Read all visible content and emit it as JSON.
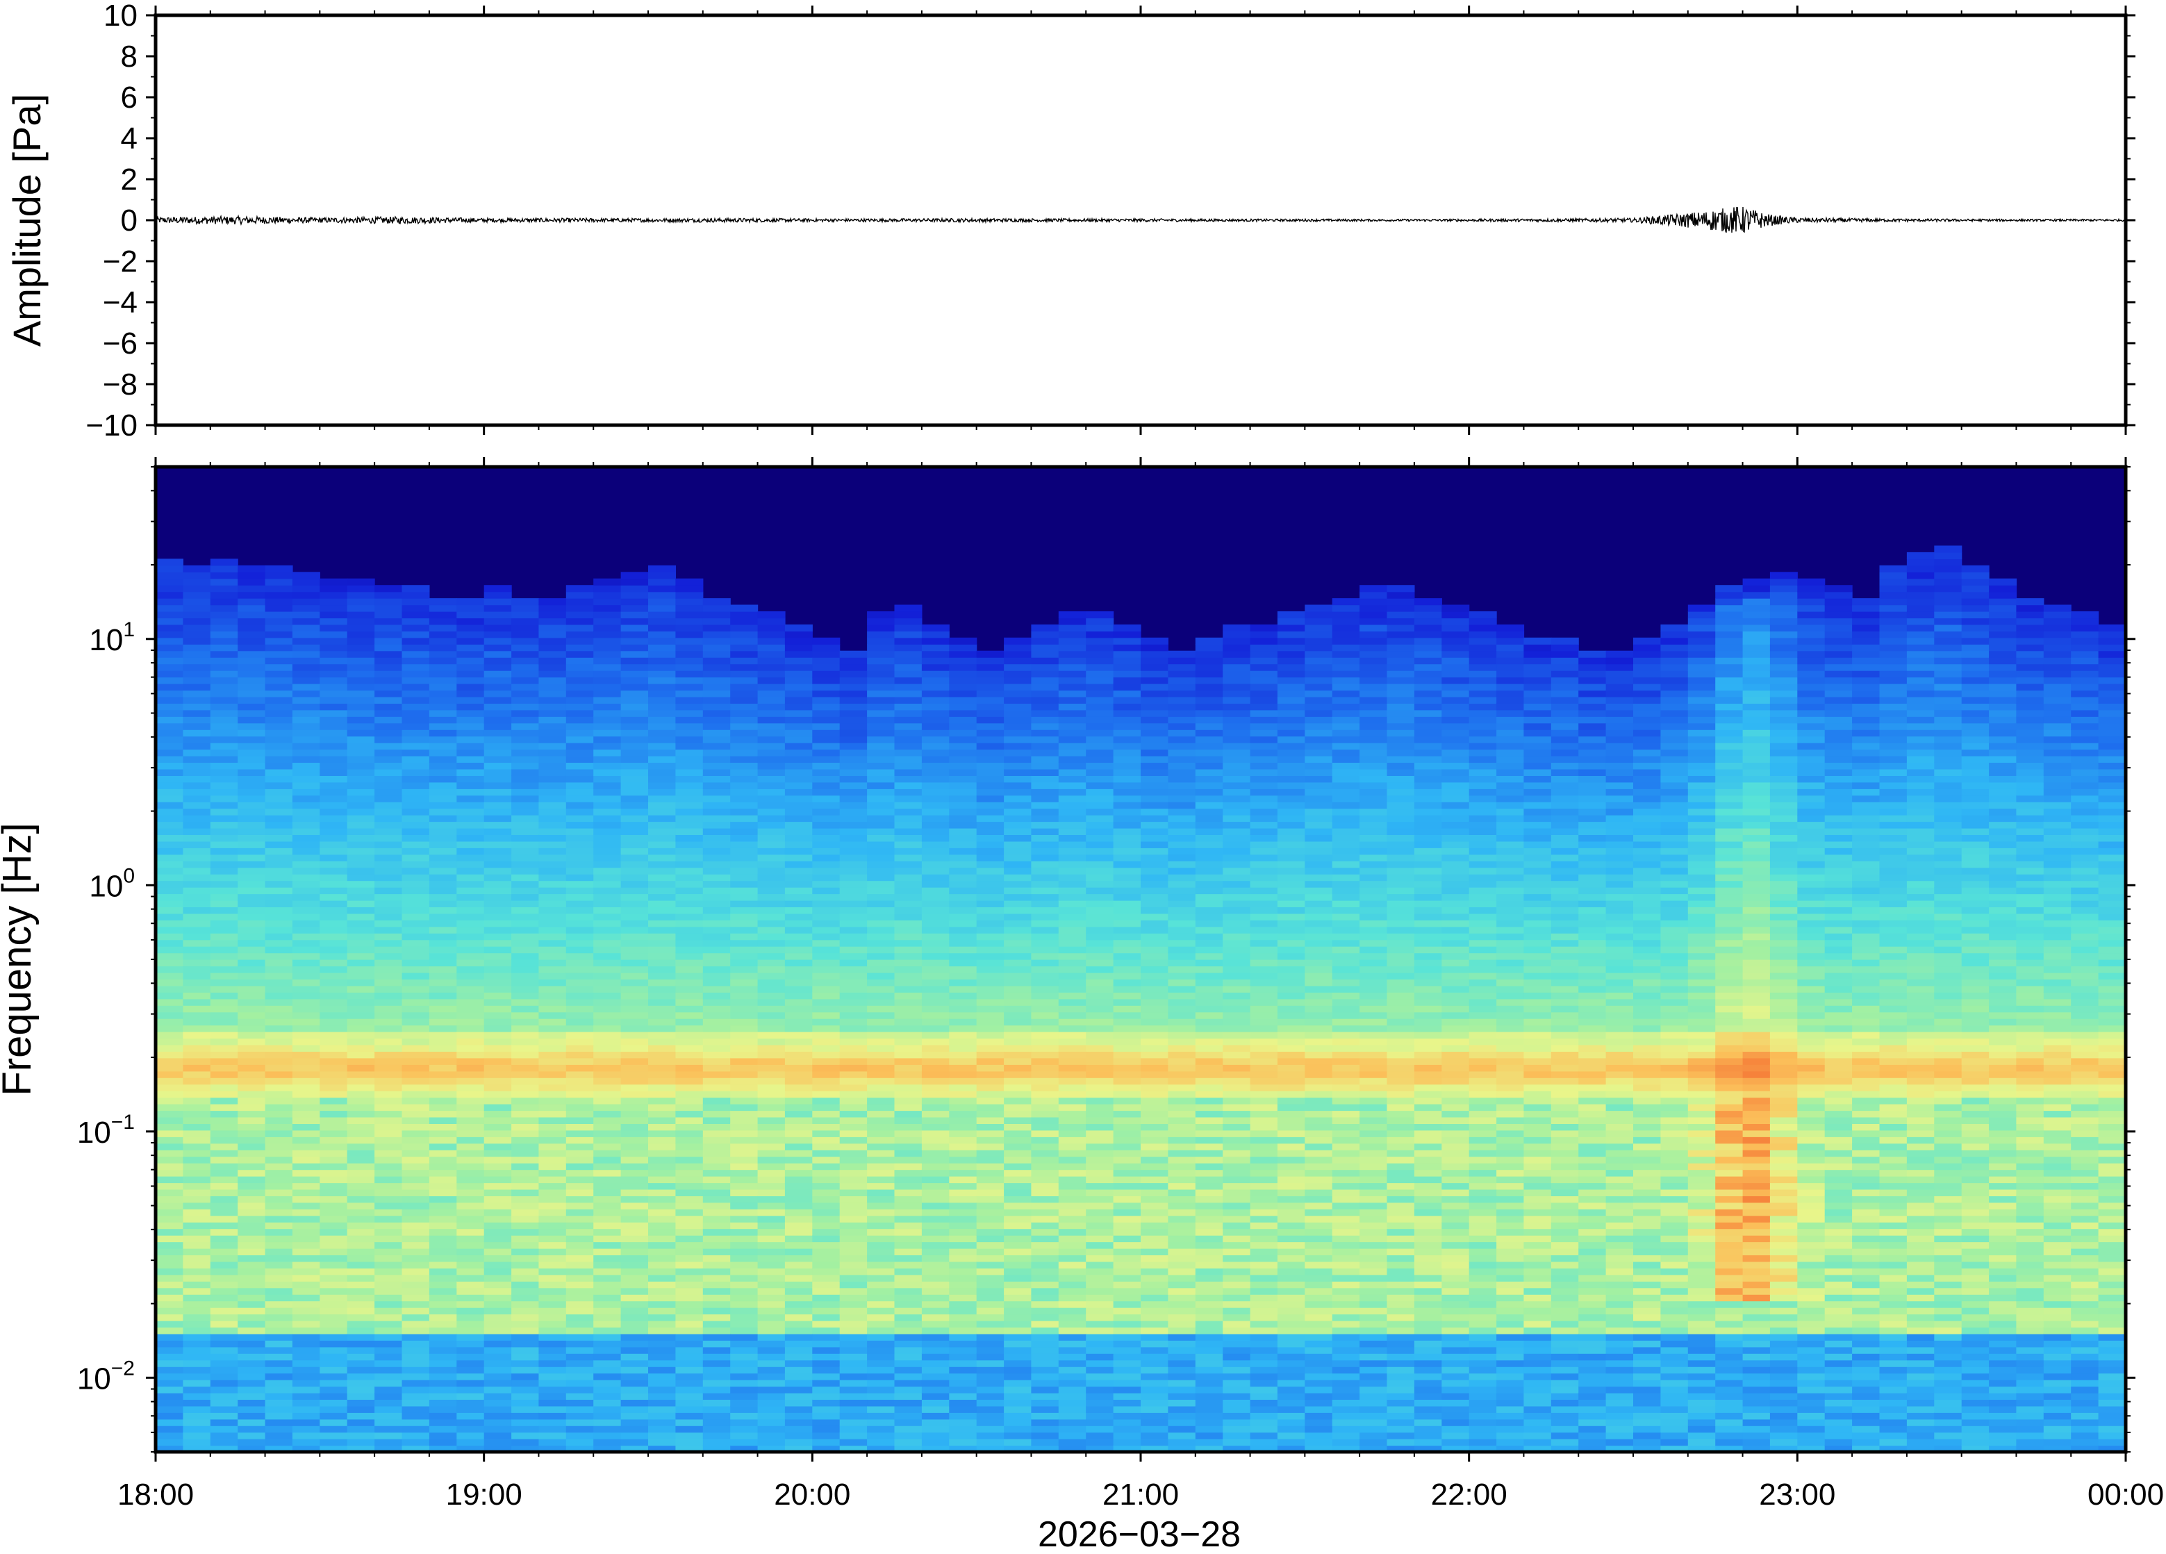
{
  "chart_data": [
    {
      "type": "line",
      "panel": "waveform",
      "ylabel": "Amplitude [Pa]",
      "ylim": [
        -10,
        10
      ],
      "yticks": [
        "−10",
        "−8",
        "−6",
        "−4",
        "−2",
        "0",
        "2",
        "4",
        "6",
        "8",
        "10"
      ],
      "xlim_hours": [
        18,
        24
      ],
      "series": [
        {
          "line_color": "#000000",
          "note_values": "approximate peak-to-peak envelope (Pa) sampled every 15 minutes from 18:00 to 24:00",
          "x_hours": [
            18.0,
            18.25,
            18.5,
            18.75,
            19.0,
            19.25,
            19.5,
            19.75,
            20.0,
            20.25,
            20.5,
            20.75,
            21.0,
            21.25,
            21.5,
            21.75,
            22.0,
            22.25,
            22.5,
            22.75,
            23.0,
            23.25,
            23.5,
            23.75,
            24.0
          ],
          "envelope": [
            0.3,
            0.4,
            0.25,
            0.35,
            0.2,
            0.2,
            0.18,
            0.2,
            0.15,
            0.15,
            0.18,
            0.15,
            0.15,
            0.12,
            0.12,
            0.1,
            0.12,
            0.15,
            0.2,
            1.0,
            0.25,
            0.15,
            0.12,
            0.1,
            0.1
          ]
        }
      ]
    },
    {
      "type": "heatmap",
      "panel": "spectrogram",
      "ylabel": "Frequency [Hz]",
      "yscale": "log",
      "ylim": [
        0.005,
        50
      ],
      "yticks": [
        {
          "base": "10",
          "exp": "−2",
          "value": 0.01
        },
        {
          "base": "10",
          "exp": "−1",
          "value": 0.1
        },
        {
          "base": "10",
          "exp": "0",
          "value": 1
        },
        {
          "base": "10",
          "exp": "1",
          "value": 10
        }
      ],
      "xlabel": "2026−03−28",
      "xticks": [
        "18:00",
        "19:00",
        "20:00",
        "21:00",
        "22:00",
        "23:00",
        "00:00"
      ],
      "colormap": [
        "#0b007a",
        "#1320d8",
        "#1e6eee",
        "#2fb6f5",
        "#57e3d8",
        "#a4f0a1",
        "#e9f58a",
        "#fbc05a",
        "#f6803a"
      ],
      "microbarom_band_hz": 0.18,
      "column_count": 72,
      "note_columns": "per 5-minute column: upper cutoff frequency of energy above the dark-blue background (Hz)",
      "cutoff_hz": [
        18,
        17,
        18,
        17,
        17,
        16,
        15,
        15,
        14,
        14,
        13,
        13,
        14,
        13,
        13,
        14,
        15,
        16,
        17,
        15,
        13,
        12,
        11,
        10,
        9,
        8,
        11,
        12,
        10,
        9,
        8,
        9,
        10,
        11,
        11,
        10,
        9,
        8,
        9,
        10,
        10,
        11,
        12,
        13,
        14,
        14,
        13,
        12,
        11,
        10,
        9,
        9,
        8,
        8,
        9,
        10,
        12,
        14,
        15,
        16,
        15,
        14,
        13,
        17,
        19,
        21,
        17,
        15,
        13,
        12,
        11,
        10
      ],
      "note_event": "broadband infrasound burst centred near 22:50, strongest 0.03–0.1 Hz"
    }
  ]
}
